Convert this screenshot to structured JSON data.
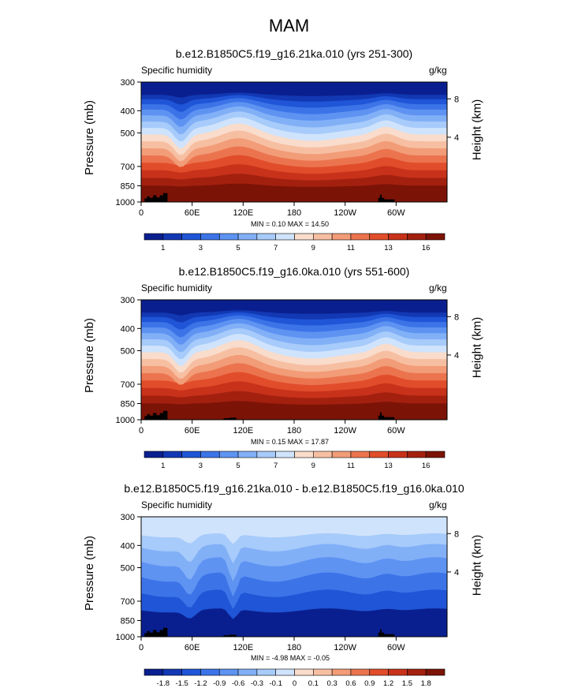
{
  "figure": {
    "title": "MAM"
  },
  "chart_data": [
    {
      "type": "heatmap",
      "title": "b.e12.B1850C5.f19_g16.21ka.010 (yrs 251-300)",
      "left_label": "Specific humidity",
      "right_label": "g/kg",
      "ylabel": "Pressure (mb)",
      "y2label": "Height (km)",
      "x_ticks": [
        "0",
        "60E",
        "120E",
        "180",
        "120W",
        "60W"
      ],
      "y_ticks": [
        "300",
        "400",
        "500",
        "700",
        "850",
        "1000"
      ],
      "y2_ticks": [
        "8",
        "4"
      ],
      "stats": "MIN =  0.10  MAX =  14.50",
      "colorbar_labels": [
        "1",
        "3",
        "5",
        "7",
        "9",
        "11",
        "13",
        "16"
      ],
      "colors": [
        "#0a1f8f",
        "#1238b4",
        "#1f55d6",
        "#3c74e8",
        "#5e93f2",
        "#82b0f7",
        "#a7cbfa",
        "#cfe3fc",
        "#f9dccb",
        "#f7bfa2",
        "#f29c78",
        "#eb744f",
        "#e14d2a",
        "#c8321a",
        "#a3200f",
        "#7c1307"
      ]
    },
    {
      "type": "heatmap",
      "title": "b.e12.B1850C5.f19_g16.0ka.010 (yrs 551-600)",
      "left_label": "Specific humidity",
      "right_label": "g/kg",
      "ylabel": "Pressure (mb)",
      "y2label": "Height (km)",
      "x_ticks": [
        "0",
        "60E",
        "120E",
        "180",
        "120W",
        "60W"
      ],
      "y_ticks": [
        "300",
        "400",
        "500",
        "700",
        "850",
        "1000"
      ],
      "y2_ticks": [
        "8",
        "4"
      ],
      "stats": "MIN =  0.15  MAX =  17.87",
      "colorbar_labels": [
        "1",
        "3",
        "5",
        "7",
        "9",
        "11",
        "13",
        "16"
      ],
      "colors": [
        "#0a1f8f",
        "#1238b4",
        "#1f55d6",
        "#3c74e8",
        "#5e93f2",
        "#82b0f7",
        "#a7cbfa",
        "#cfe3fc",
        "#f9dccb",
        "#f7bfa2",
        "#f29c78",
        "#eb744f",
        "#e14d2a",
        "#c8321a",
        "#a3200f",
        "#7c1307"
      ]
    },
    {
      "type": "heatmap",
      "title": "b.e12.B1850C5.f19_g16.21ka.010 - b.e12.B1850C5.f19_g16.0ka.010",
      "left_label": "Specific humidity",
      "right_label": "g/kg",
      "ylabel": "Pressure (mb)",
      "y2label": "Height (km)",
      "x_ticks": [
        "0",
        "60E",
        "120E",
        "180",
        "120W",
        "60W"
      ],
      "y_ticks": [
        "300",
        "400",
        "500",
        "700",
        "850",
        "1000"
      ],
      "y2_ticks": [
        "8",
        "4"
      ],
      "stats": "MIN = -4.98  MAX = -0.05",
      "colorbar_labels": [
        "-1.8",
        "-1.5",
        "-1.2",
        "-0.9",
        "-0.6",
        "-0.3",
        "-0.1",
        "0",
        "0.1",
        "0.3",
        "0.6",
        "0.9",
        "1.2",
        "1.5",
        "1.8"
      ],
      "colors": [
        "#0a1f8f",
        "#1238b4",
        "#1f55d6",
        "#3c74e8",
        "#5e93f2",
        "#82b0f7",
        "#a7cbfa",
        "#cfe3fc",
        "#f9dccb",
        "#f7bfa2",
        "#f29c78",
        "#eb744f",
        "#e14d2a",
        "#c8321a",
        "#a3200f",
        "#7c1307"
      ]
    }
  ]
}
